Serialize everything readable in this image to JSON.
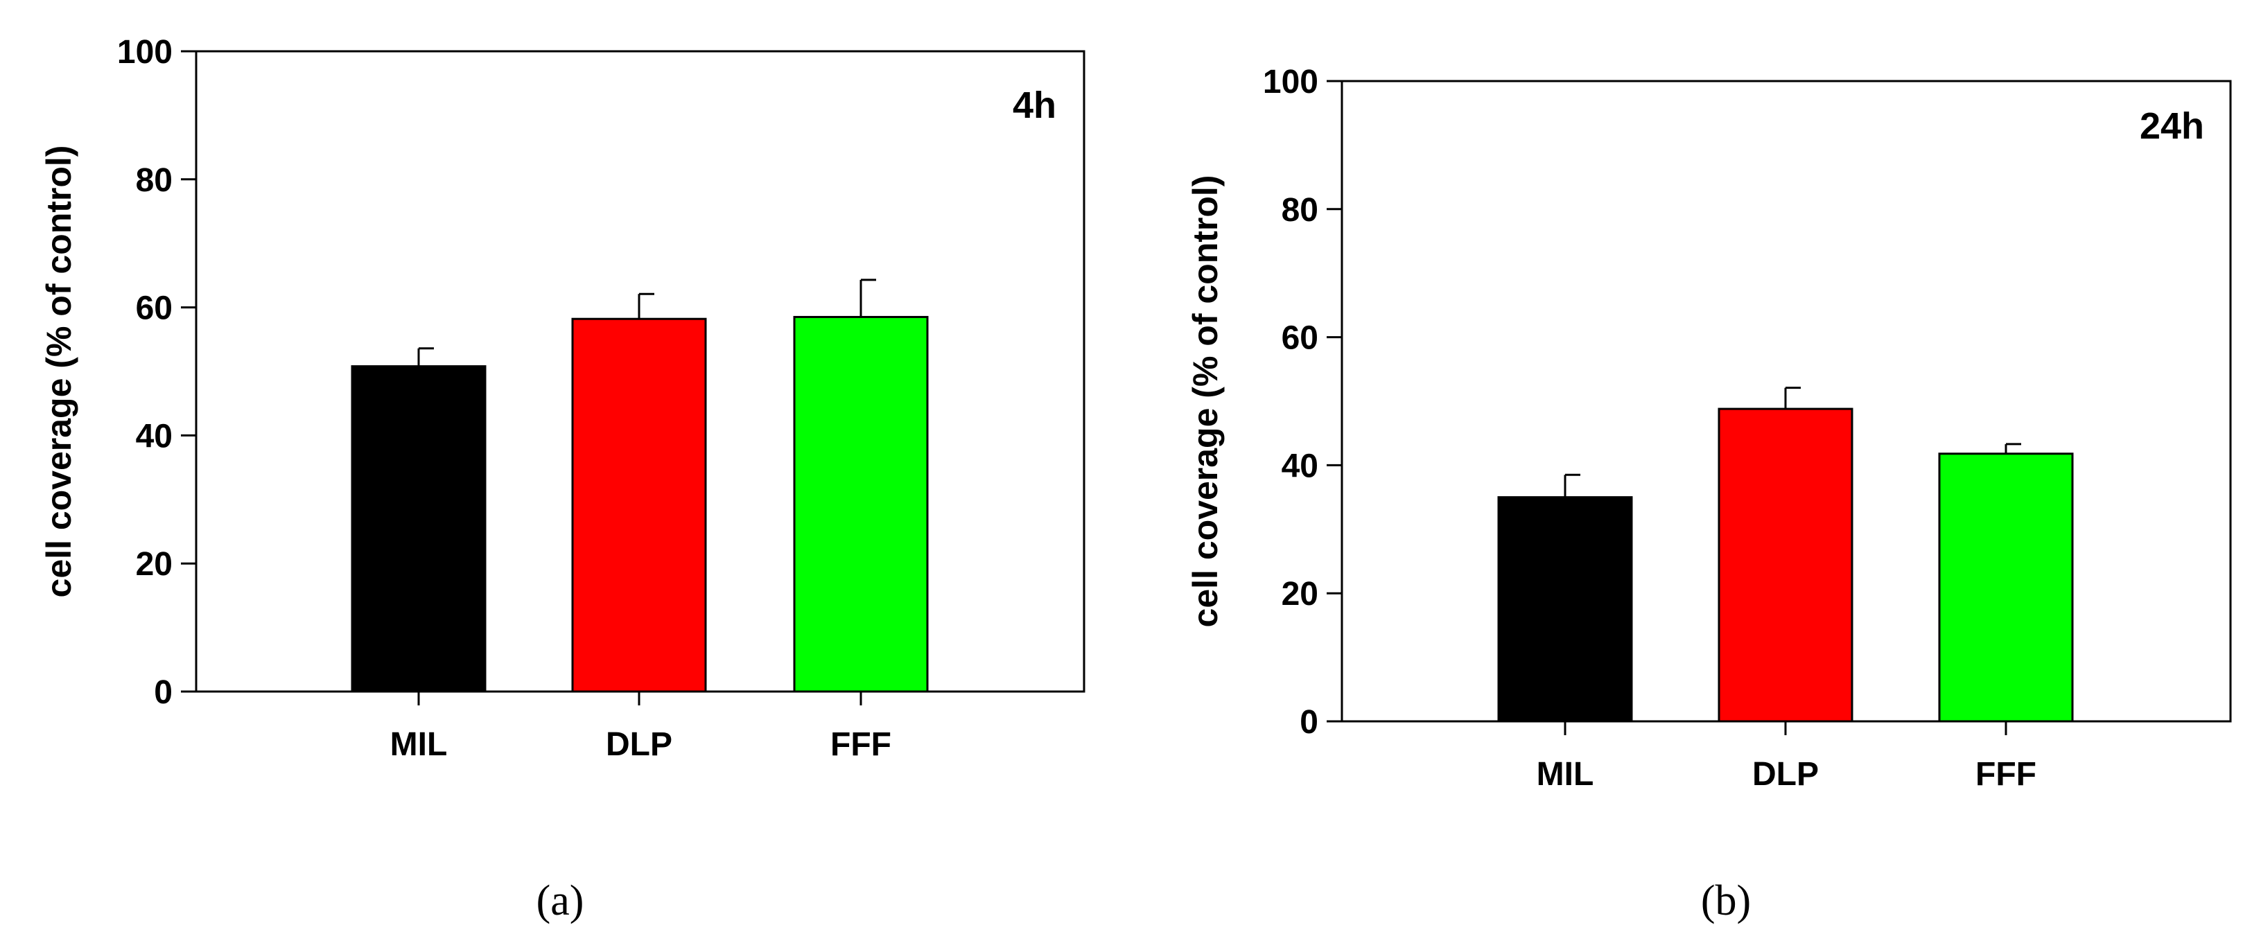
{
  "chart_data": [
    {
      "type": "bar",
      "panel_label": "4h",
      "caption": "(a)",
      "ylabel": "cell coverage (% of control)",
      "ylim": [
        0,
        100
      ],
      "yticks": [
        "0",
        "20",
        "40",
        "60",
        "80",
        "100"
      ],
      "categories": [
        "MIL",
        "DLP",
        "FFF"
      ],
      "values": [
        50.8,
        58.2,
        58.5
      ],
      "errors": [
        2.8,
        3.9,
        5.8
      ],
      "colors": [
        "#000000",
        "#ff0000",
        "#00ff00"
      ]
    },
    {
      "type": "bar",
      "panel_label": "24h",
      "caption": "(b)",
      "ylabel": "cell coverage (% of control)",
      "ylim": [
        0,
        100
      ],
      "yticks": [
        "0",
        "20",
        "40",
        "60",
        "80",
        "100"
      ],
      "categories": [
        "MIL",
        "DLP",
        "FFF"
      ],
      "values": [
        35.0,
        48.8,
        41.8
      ],
      "errors": [
        3.5,
        3.3,
        1.5
      ],
      "colors": [
        "#000000",
        "#ff0000",
        "#00ff00"
      ]
    }
  ]
}
